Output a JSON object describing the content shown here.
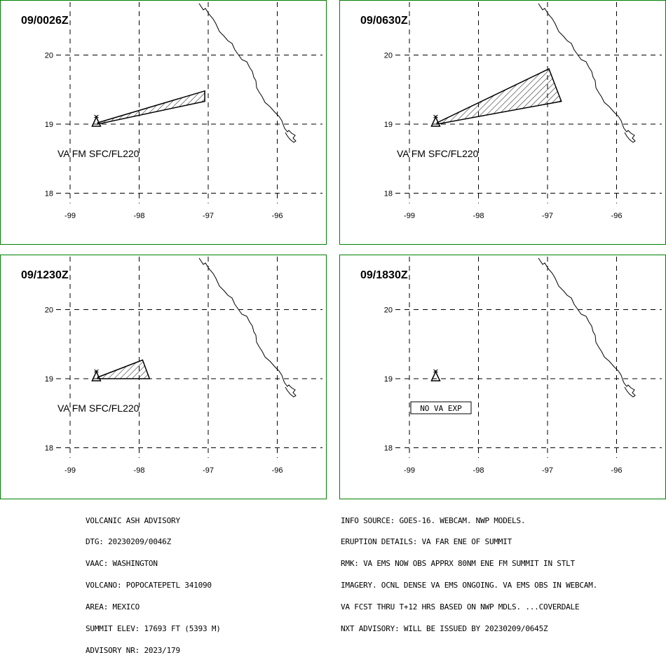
{
  "colors": {
    "frame": "#008000",
    "ink": "#000000",
    "background": "#ffffff"
  },
  "axes": {
    "lat_labels": [
      "20",
      "19",
      "18"
    ],
    "lon_labels": [
      "-99",
      "-98",
      "-97",
      "-96"
    ]
  },
  "panels": [
    {
      "time": "09/0026Z",
      "label": "VA FM SFC/FL220",
      "plume": [
        [
          -98.6,
          19.02
        ],
        [
          -97.05,
          19.48
        ],
        [
          -97.05,
          19.33
        ],
        [
          -98.6,
          19.0
        ]
      ]
    },
    {
      "time": "09/0630Z",
      "label": "VA FM SFC/FL220",
      "plume": [
        [
          -98.6,
          19.02
        ],
        [
          -96.98,
          19.8
        ],
        [
          -96.8,
          19.33
        ],
        [
          -98.6,
          19.0
        ]
      ]
    },
    {
      "time": "09/1230Z",
      "label": "VA FM SFC/FL220",
      "plume": [
        [
          -98.6,
          19.02
        ],
        [
          -97.95,
          19.27
        ],
        [
          -97.85,
          19.0
        ],
        [
          -98.6,
          19.0
        ]
      ]
    },
    {
      "time": "09/1830Z",
      "label": "",
      "no_va": "NO VA EXP",
      "plume": null
    }
  ],
  "advisory_left": [
    "VOLCANIC ASH ADVISORY",
    "DTG: 20230209/0046Z",
    "VAAC: WASHINGTON",
    "VOLCANO: POPOCATEPETL 341090",
    "AREA: MEXICO",
    "SUMMIT ELEV: 17693 FT (5393 M)",
    "ADVISORY NR: 2023/179"
  ],
  "advisory_right": [
    "INFO SOURCE: GOES-16. WEBCAM. NWP MODELS.",
    "ERUPTION DETAILS: VA FAR ENE OF SUMMIT",
    "RMK: VA EMS NOW OBS APPRX 80NM ENE FM SUMMIT IN STLT",
    "IMAGERY. OCNL DENSE VA EMS ONGOING. VA EMS OBS IN WEBCAM.",
    "VA FCST THRU T+12 HRS BASED ON NWP MDLS. ...COVERDALE",
    "NXT ADVISORY: WILL BE ISSUED BY 20230209/0645Z"
  ]
}
